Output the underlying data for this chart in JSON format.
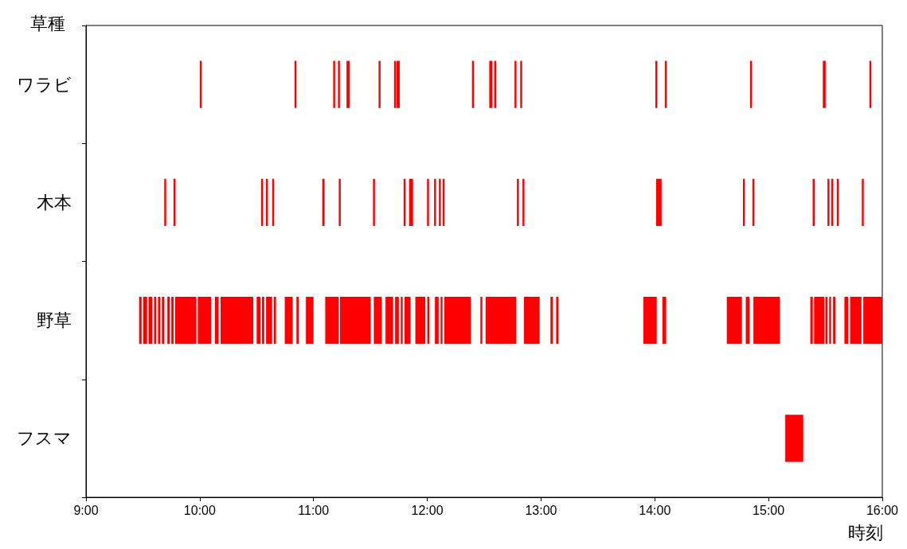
{
  "chart_data": {
    "type": "bar",
    "orientation": "horizontal",
    "xlabel": "時刻",
    "ylabel": "草種",
    "categories": [
      "ワラビ",
      "木本",
      "野草",
      "フスマ"
    ],
    "xlim": [
      9,
      16
    ],
    "xticks": [
      {
        "value": 9,
        "label": "9:00"
      },
      {
        "value": 10,
        "label": "10:00"
      },
      {
        "value": 11,
        "label": "11:00"
      },
      {
        "value": 12,
        "label": "12:00"
      },
      {
        "value": 13,
        "label": "13:00"
      },
      {
        "value": 14,
        "label": "14:00"
      },
      {
        "value": 15,
        "label": "15:00"
      },
      {
        "value": 16,
        "label": "16:00"
      }
    ],
    "series": [
      {
        "color": "#ff0000",
        "base": [
          10.0,
          9.688,
          9.467,
          15.147
        ],
        "values": [
          0.017,
          0.017,
          0.022,
          0.158
        ]
      },
      {
        "color": "#ff0000",
        "base": [
          10.833,
          9.77,
          9.502,
          null
        ],
        "values": [
          0.017,
          0.017,
          0.035,
          null
        ]
      },
      {
        "color": "#ff0000",
        "base": [
          11.173,
          10.54,
          9.55,
          null
        ],
        "values": [
          0.017,
          0.017,
          0.033,
          null
        ]
      },
      {
        "color": "#ff0000",
        "base": [
          11.215,
          10.582,
          9.598,
          null
        ],
        "values": [
          0.017,
          0.017,
          0.02,
          null
        ]
      },
      {
        "color": "#ff0000",
        "base": [
          11.29,
          10.637,
          9.633,
          null
        ],
        "values": [
          0.027,
          0.017,
          0.02,
          null
        ]
      },
      {
        "color": "#ff0000",
        "base": [
          11.572,
          11.077,
          9.667,
          null
        ],
        "values": [
          0.017,
          0.02,
          0.022,
          null
        ]
      },
      {
        "color": "#ff0000",
        "base": [
          11.708,
          11.222,
          9.715,
          null
        ],
        "values": [
          0.017,
          0.017,
          0.02,
          null
        ]
      },
      {
        "color": "#ff0000",
        "base": [
          11.73,
          11.523,
          9.75,
          null
        ],
        "values": [
          0.028,
          0.017,
          0.02,
          null
        ]
      },
      {
        "color": "#ff0000",
        "base": [
          12.393,
          11.792,
          9.783,
          null
        ],
        "values": [
          0.017,
          0.017,
          0.187,
          null
        ]
      },
      {
        "color": "#ff0000",
        "base": [
          12.545,
          11.84,
          9.983,
          null
        ],
        "values": [
          0.028,
          0.035,
          0.117,
          null
        ]
      },
      {
        "color": "#ff0000",
        "base": [
          12.588,
          11.998,
          10.133,
          null
        ],
        "values": [
          0.017,
          0.017,
          0.033,
          null
        ]
      },
      {
        "color": "#ff0000",
        "base": [
          12.767,
          12.06,
          10.183,
          null
        ],
        "values": [
          0.017,
          0.017,
          0.288,
          null
        ]
      },
      {
        "color": "#ff0000",
        "base": [
          12.817,
          12.102,
          10.5,
          null
        ],
        "values": [
          0.017,
          0.017,
          0.033,
          null
        ]
      },
      {
        "color": "#ff0000",
        "base": [
          14.005,
          12.135,
          10.547,
          null
        ],
        "values": [
          0.017,
          0.017,
          0.02,
          null
        ]
      },
      {
        "color": "#ff0000",
        "base": [
          14.088,
          12.788,
          10.583,
          null
        ],
        "values": [
          0.017,
          0.017,
          0.053,
          null
        ]
      },
      {
        "color": "#ff0000",
        "base": [
          14.838,
          12.837,
          10.65,
          null
        ],
        "values": [
          0.017,
          0.017,
          0.02,
          null
        ]
      },
      {
        "color": "#ff0000",
        "base": [
          15.477,
          14.012,
          10.747,
          null
        ],
        "values": [
          0.025,
          0.048,
          0.07,
          null
        ]
      },
      {
        "color": "#ff0000",
        "base": [
          15.887,
          14.775,
          10.85,
          null
        ],
        "values": [
          0.017,
          0.017,
          0.02,
          null
        ]
      },
      {
        "color": "#ff0000",
        "base": [
          null,
          14.858,
          10.933,
          null
        ],
        "values": [
          null,
          0.017,
          0.067,
          null
        ]
      },
      {
        "color": "#ff0000",
        "base": [
          null,
          15.388,
          11.103,
          null
        ],
        "values": [
          null,
          0.017,
          0.118,
          null
        ]
      },
      {
        "color": "#ff0000",
        "base": [
          null,
          15.518,
          11.233,
          null
        ],
        "values": [
          null,
          0.017,
          0.27,
          null
        ]
      },
      {
        "color": "#ff0000",
        "base": [
          null,
          15.552,
          11.53,
          null
        ],
        "values": [
          null,
          0.017,
          0.07,
          null
        ]
      },
      {
        "color": "#ff0000",
        "base": [
          null,
          15.6,
          11.633,
          null
        ],
        "values": [
          null,
          0.017,
          0.067,
          null
        ]
      },
      {
        "color": "#ff0000",
        "base": [
          null,
          15.82,
          11.717,
          null
        ],
        "values": [
          null,
          0.017,
          0.033,
          null
        ]
      },
      {
        "color": "#ff0000",
        "base": [
          null,
          null,
          11.767,
          null
        ],
        "values": [
          null,
          null,
          0.017,
          null
        ]
      },
      {
        "color": "#ff0000",
        "base": [
          null,
          null,
          11.8,
          null
        ],
        "values": [
          null,
          null,
          0.053,
          null
        ]
      },
      {
        "color": "#ff0000",
        "base": [
          null,
          null,
          11.895,
          null
        ],
        "values": [
          null,
          null,
          0.088,
          null
        ]
      },
      {
        "color": "#ff0000",
        "base": [
          null,
          null,
          12.0,
          null
        ],
        "values": [
          null,
          null,
          0.017,
          null
        ]
      },
      {
        "color": "#ff0000",
        "base": [
          null,
          null,
          12.067,
          null
        ],
        "values": [
          null,
          null,
          0.033,
          null
        ]
      },
      {
        "color": "#ff0000",
        "base": [
          null,
          null,
          12.117,
          null
        ],
        "values": [
          null,
          null,
          0.017,
          null
        ]
      },
      {
        "color": "#ff0000",
        "base": [
          null,
          null,
          12.15,
          null
        ],
        "values": [
          null,
          null,
          0.233,
          null
        ]
      },
      {
        "color": "#ff0000",
        "base": [
          null,
          null,
          12.467,
          null
        ],
        "values": [
          null,
          null,
          0.017,
          null
        ]
      },
      {
        "color": "#ff0000",
        "base": [
          null,
          null,
          12.513,
          null
        ],
        "values": [
          null,
          null,
          0.27,
          null
        ]
      },
      {
        "color": "#ff0000",
        "base": [
          null,
          null,
          12.85,
          null
        ],
        "values": [
          null,
          null,
          0.138,
          null
        ]
      },
      {
        "color": "#ff0000",
        "base": [
          null,
          null,
          13.083,
          null
        ],
        "values": [
          null,
          null,
          0.022,
          null
        ]
      },
      {
        "color": "#ff0000",
        "base": [
          null,
          null,
          13.133,
          null
        ],
        "values": [
          null,
          null,
          0.02,
          null
        ]
      },
      {
        "color": "#ff0000",
        "base": [
          null,
          null,
          13.9,
          null
        ],
        "values": [
          null,
          null,
          0.117,
          null
        ]
      },
      {
        "color": "#ff0000",
        "base": [
          null,
          null,
          14.067,
          null
        ],
        "values": [
          null,
          null,
          0.033,
          null
        ]
      },
      {
        "color": "#ff0000",
        "base": [
          null,
          null,
          14.633,
          null
        ],
        "values": [
          null,
          null,
          0.133,
          null
        ]
      },
      {
        "color": "#ff0000",
        "base": [
          null,
          null,
          14.8,
          null
        ],
        "values": [
          null,
          null,
          0.033,
          null
        ]
      },
      {
        "color": "#ff0000",
        "base": [
          null,
          null,
          14.867,
          null
        ],
        "values": [
          null,
          null,
          0.233,
          null
        ]
      },
      {
        "color": "#ff0000",
        "base": [
          null,
          null,
          15.367,
          null
        ],
        "values": [
          null,
          null,
          0.022,
          null
        ]
      },
      {
        "color": "#ff0000",
        "base": [
          null,
          null,
          15.4,
          null
        ],
        "values": [
          null,
          null,
          0.09,
          null
        ]
      },
      {
        "color": "#ff0000",
        "base": [
          null,
          null,
          15.5,
          null
        ],
        "values": [
          null,
          null,
          0.017,
          null
        ]
      },
      {
        "color": "#ff0000",
        "base": [
          null,
          null,
          15.533,
          null
        ],
        "values": [
          null,
          null,
          0.017,
          null
        ]
      },
      {
        "color": "#ff0000",
        "base": [
          null,
          null,
          15.567,
          null
        ],
        "values": [
          null,
          null,
          0.02,
          null
        ]
      },
      {
        "color": "#ff0000",
        "base": [
          null,
          null,
          15.667,
          null
        ],
        "values": [
          null,
          null,
          0.033,
          null
        ]
      },
      {
        "color": "#ff0000",
        "base": [
          null,
          null,
          15.717,
          null
        ],
        "values": [
          null,
          null,
          0.1,
          null
        ]
      },
      {
        "color": "#ff0000",
        "base": [
          null,
          null,
          15.833,
          null
        ],
        "values": [
          null,
          null,
          0.167,
          null
        ]
      }
    ]
  }
}
